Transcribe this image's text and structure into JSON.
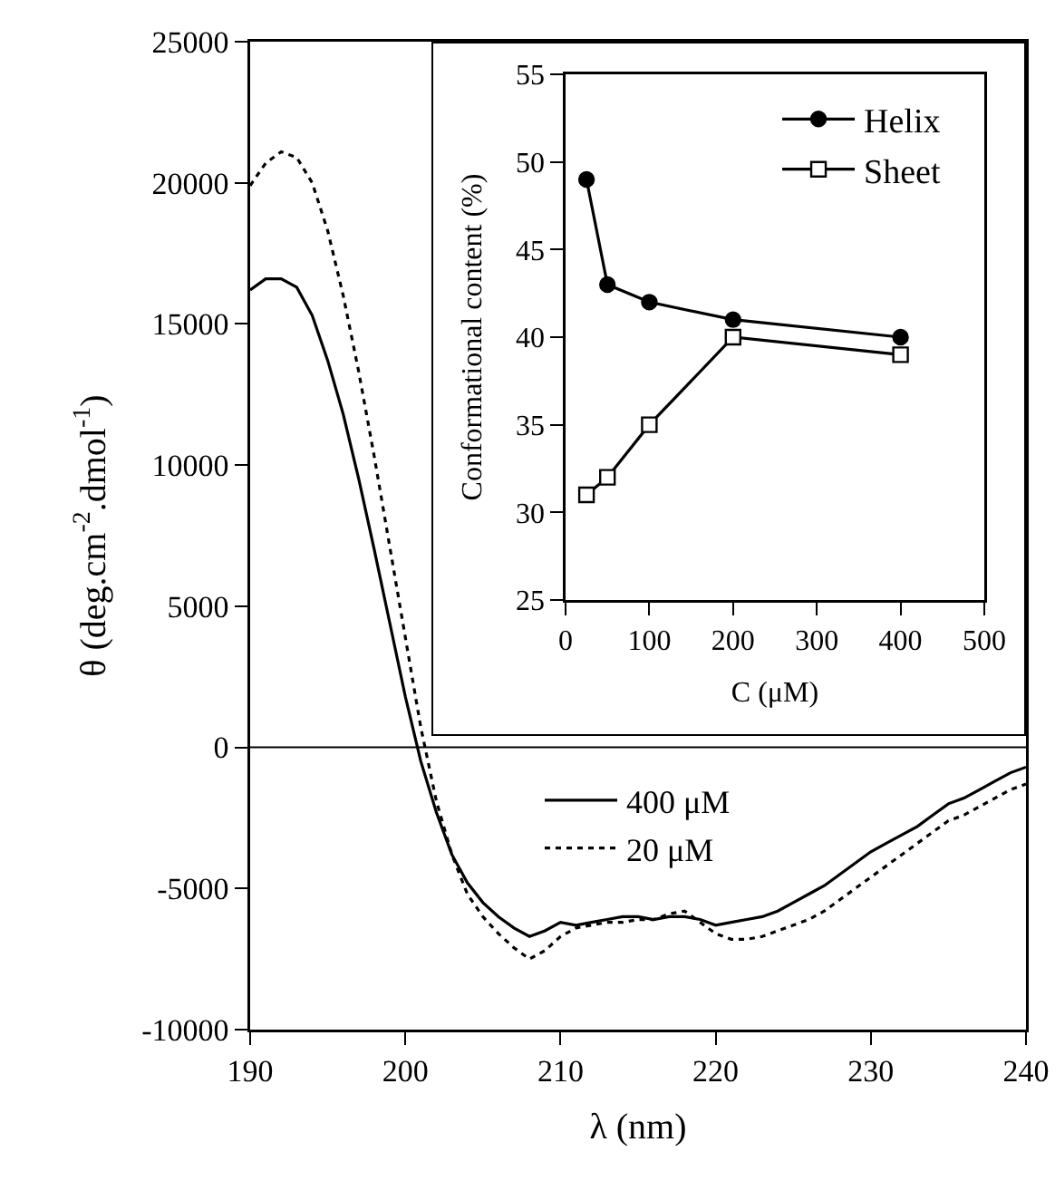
{
  "chart_data": [
    {
      "type": "line",
      "xlabel": "λ (nm)",
      "ylabel": "θ (deg.cm$^{-2}$.dmol$^{-1}$)",
      "x": [
        190,
        191,
        192,
        193,
        194,
        195,
        196,
        197,
        198,
        199,
        200,
        201,
        202,
        203,
        204,
        205,
        206,
        207,
        208,
        209,
        210,
        211,
        212,
        213,
        214,
        215,
        216,
        217,
        218,
        219,
        220,
        221,
        222,
        223,
        224,
        225,
        226,
        227,
        228,
        229,
        230,
        231,
        232,
        233,
        234,
        235,
        236,
        237,
        238,
        239,
        240
      ],
      "series": [
        {
          "name": "400 μM",
          "color": "#000000",
          "line_style": "solid",
          "values": [
            16200,
            16600,
            16600,
            16300,
            15300,
            13700,
            11800,
            9500,
            7000,
            4400,
            1800,
            -500,
            -2300,
            -3800,
            -4800,
            -5500,
            -6000,
            -6400,
            -6700,
            -6500,
            -6200,
            -6300,
            -6200,
            -6100,
            -6000,
            -6000,
            -6100,
            -6000,
            -6000,
            -6100,
            -6300,
            -6200,
            -6100,
            -6000,
            -5800,
            -5500,
            -5200,
            -4900,
            -4500,
            -4100,
            -3700,
            -3400,
            -3100,
            -2800,
            -2400,
            -2000,
            -1800,
            -1500,
            -1200,
            -900,
            -700
          ]
        },
        {
          "name": "20 μM",
          "color": "#000000",
          "line_style": "dotted",
          "values": [
            19900,
            20700,
            21100,
            20900,
            20000,
            18300,
            16000,
            13300,
            10300,
            7100,
            3900,
            700,
            -1900,
            -3800,
            -5200,
            -6000,
            -6600,
            -7100,
            -7500,
            -7200,
            -6700,
            -6400,
            -6300,
            -6200,
            -6200,
            -6100,
            -6100,
            -5900,
            -5800,
            -6200,
            -6600,
            -6800,
            -6800,
            -6700,
            -6500,
            -6300,
            -6100,
            -5800,
            -5400,
            -5000,
            -4600,
            -4200,
            -3800,
            -3400,
            -3000,
            -2600,
            -2400,
            -2100,
            -1800,
            -1500,
            -1300
          ]
        }
      ],
      "xlim": [
        190,
        240
      ],
      "xticks": [
        190,
        200,
        210,
        220,
        230,
        240
      ],
      "ylim": [
        -10000,
        25000
      ],
      "yticks": [
        -10000,
        -5000,
        0,
        5000,
        10000,
        15000,
        20000,
        25000
      ],
      "ref_lines": [
        {
          "axis": "y",
          "value": 0,
          "color": "#000000"
        }
      ],
      "grid": false,
      "legend": "bottom",
      "marker": "none"
    },
    {
      "type": "line",
      "xlabel": "C (μM)",
      "ylabel": "Conformational content (%)",
      "x": [
        25,
        50,
        100,
        200,
        400
      ],
      "series": [
        {
          "name": "Helix",
          "color": "#000000",
          "marker": "circle",
          "values": [
            49,
            43,
            42,
            41,
            40
          ]
        },
        {
          "name": "Sheet",
          "color": "#000000",
          "marker": "square",
          "values": [
            31,
            32,
            35,
            40,
            39
          ]
        }
      ],
      "xlim": [
        0,
        500
      ],
      "xticks": [
        0,
        100,
        200,
        300,
        400,
        500
      ],
      "ylim": [
        25,
        55
      ],
      "yticks": [
        25,
        30,
        35,
        40,
        45,
        50,
        55
      ],
      "grid": false,
      "legend": "top right"
    }
  ]
}
